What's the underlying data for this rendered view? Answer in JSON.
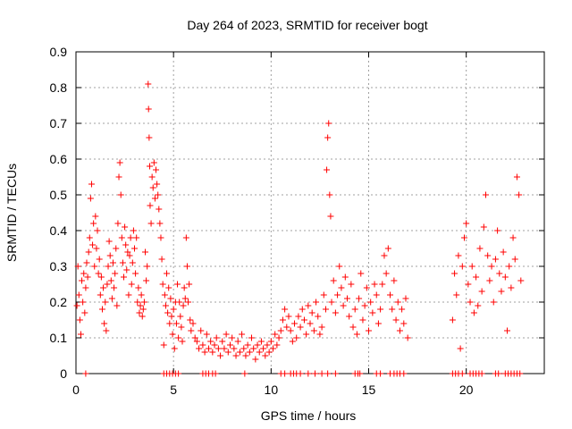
{
  "chart_data": {
    "type": "scatter",
    "title": "Day 264 of 2023, SRMTID for receiver bogt",
    "xlabel": "GPS time / hours",
    "ylabel": "SRMTID / TECUs",
    "xlim": [
      0,
      24
    ],
    "ylim": [
      0,
      0.9
    ],
    "x_ticks": [
      0,
      5,
      10,
      15,
      20
    ],
    "y_ticks": [
      0,
      0.1,
      0.2,
      0.3,
      0.4,
      0.5,
      0.6,
      0.7,
      0.8,
      0.9
    ],
    "x_tick_labels": [
      "0",
      "5",
      "10",
      "15",
      "20"
    ],
    "y_tick_labels": [
      "0",
      "0.1",
      "0.2",
      "0.3",
      "0.4",
      "0.5",
      "0.6",
      "0.7",
      "0.8",
      "0.9"
    ],
    "grid": true,
    "marker": "+",
    "marker_color": "#ff0000",
    "series": [
      {
        "name": "SRMTID",
        "points": [
          [
            0.05,
            0.19
          ],
          [
            0.1,
            0.3
          ],
          [
            0.15,
            0.22
          ],
          [
            0.2,
            0.15
          ],
          [
            0.25,
            0.11
          ],
          [
            0.3,
            0.26
          ],
          [
            0.35,
            0.2
          ],
          [
            0.4,
            0.28
          ],
          [
            0.45,
            0.17
          ],
          [
            0.5,
            0.24
          ],
          [
            0.55,
            0.31
          ],
          [
            0.6,
            0.27
          ],
          [
            0.65,
            0.34
          ],
          [
            0.7,
            0.38
          ],
          [
            0.75,
            0.49
          ],
          [
            0.8,
            0.53
          ],
          [
            0.85,
            0.36
          ],
          [
            0.9,
            0.42
          ],
          [
            0.95,
            0.3
          ],
          [
            1.0,
            0.44
          ],
          [
            1.05,
            0.35
          ],
          [
            1.1,
            0.4
          ],
          [
            1.15,
            0.28
          ],
          [
            1.2,
            0.32
          ],
          [
            1.25,
            0.22
          ],
          [
            1.3,
            0.27
          ],
          [
            1.35,
            0.18
          ],
          [
            1.4,
            0.24
          ],
          [
            1.45,
            0.14
          ],
          [
            1.5,
            0.2
          ],
          [
            1.55,
            0.12
          ],
          [
            1.6,
            0.25
          ],
          [
            1.65,
            0.3
          ],
          [
            1.7,
            0.37
          ],
          [
            1.75,
            0.33
          ],
          [
            1.8,
            0.26
          ],
          [
            1.85,
            0.21
          ],
          [
            1.9,
            0.31
          ],
          [
            1.95,
            0.24
          ],
          [
            2.0,
            0.28
          ],
          [
            2.05,
            0.35
          ],
          [
            2.1,
            0.19
          ],
          [
            2.15,
            0.42
          ],
          [
            2.2,
            0.55
          ],
          [
            2.25,
            0.59
          ],
          [
            2.3,
            0.5
          ],
          [
            2.35,
            0.38
          ],
          [
            2.4,
            0.31
          ],
          [
            2.45,
            0.27
          ],
          [
            2.5,
            0.41
          ],
          [
            2.55,
            0.36
          ],
          [
            2.6,
            0.29
          ],
          [
            2.65,
            0.34
          ],
          [
            2.7,
            0.22
          ],
          [
            2.75,
            0.33
          ],
          [
            2.8,
            0.38
          ],
          [
            2.85,
            0.25
          ],
          [
            2.9,
            0.31
          ],
          [
            2.95,
            0.4
          ],
          [
            3.0,
            0.35
          ],
          [
            3.05,
            0.28
          ],
          [
            3.1,
            0.38
          ],
          [
            3.15,
            0.2
          ],
          [
            3.2,
            0.24
          ],
          [
            3.25,
            0.17
          ],
          [
            3.3,
            0.19
          ],
          [
            3.35,
            0.22
          ],
          [
            3.4,
            0.16
          ],
          [
            3.45,
            0.18
          ],
          [
            3.5,
            0.2
          ],
          [
            3.55,
            0.34
          ],
          [
            3.6,
            0.26
          ],
          [
            3.65,
            0.3
          ],
          [
            3.7,
            0.81
          ],
          [
            3.72,
            0.74
          ],
          [
            3.75,
            0.66
          ],
          [
            3.78,
            0.58
          ],
          [
            3.8,
            0.47
          ],
          [
            3.85,
            0.42
          ],
          [
            3.9,
            0.55
          ],
          [
            3.95,
            0.52
          ],
          [
            4.0,
            0.59
          ],
          [
            4.05,
            0.49
          ],
          [
            4.1,
            0.57
          ],
          [
            4.15,
            0.53
          ],
          [
            4.2,
            0.5
          ],
          [
            4.25,
            0.46
          ],
          [
            4.3,
            0.42
          ],
          [
            4.35,
            0.38
          ],
          [
            4.4,
            0.32
          ],
          [
            4.45,
            0.25
          ],
          [
            4.5,
            0.08
          ],
          [
            4.55,
            0.22
          ],
          [
            4.6,
            0.19
          ],
          [
            4.65,
            0.28
          ],
          [
            4.7,
            0.17
          ],
          [
            4.75,
            0.24
          ],
          [
            4.8,
            0.14
          ],
          [
            4.85,
            0.21
          ],
          [
            4.9,
            0.16
          ],
          [
            4.95,
            0.11
          ],
          [
            5.0,
            0.18
          ],
          [
            5.05,
            0.07
          ],
          [
            5.1,
            0.2
          ],
          [
            5.15,
            0.14
          ],
          [
            5.2,
            0.25
          ],
          [
            5.25,
            0.1
          ],
          [
            5.3,
            0.2
          ],
          [
            5.35,
            0.16
          ],
          [
            5.4,
            0.13
          ],
          [
            5.45,
            0.09
          ],
          [
            5.5,
            0.19
          ],
          [
            5.55,
            0.24
          ],
          [
            5.6,
            0.21
          ],
          [
            5.65,
            0.38
          ],
          [
            5.7,
            0.3
          ],
          [
            5.75,
            0.2
          ],
          [
            5.8,
            0.25
          ],
          [
            5.85,
            0.15
          ],
          [
            5.9,
            0.12
          ],
          [
            6.0,
            0.14
          ],
          [
            6.1,
            0.1
          ],
          [
            6.2,
            0.09
          ],
          [
            6.3,
            0.07
          ],
          [
            6.4,
            0.12
          ],
          [
            6.5,
            0.08
          ],
          [
            6.6,
            0.06
          ],
          [
            6.7,
            0.11
          ],
          [
            6.8,
            0.07
          ],
          [
            6.9,
            0.09
          ],
          [
            7.0,
            0.06
          ],
          [
            7.1,
            0.08
          ],
          [
            7.2,
            0.1
          ],
          [
            7.3,
            0.07
          ],
          [
            7.4,
            0.05
          ],
          [
            7.5,
            0.09
          ],
          [
            7.6,
            0.07
          ],
          [
            7.7,
            0.11
          ],
          [
            7.8,
            0.06
          ],
          [
            7.9,
            0.08
          ],
          [
            8.0,
            0.1
          ],
          [
            8.1,
            0.07
          ],
          [
            8.2,
            0.05
          ],
          [
            8.3,
            0.09
          ],
          [
            8.4,
            0.06
          ],
          [
            8.5,
            0.11
          ],
          [
            8.6,
            0.07
          ],
          [
            8.7,
            0.05
          ],
          [
            8.8,
            0.08
          ],
          [
            8.9,
            0.06
          ],
          [
            9.0,
            0.1
          ],
          [
            9.1,
            0.07
          ],
          [
            9.2,
            0.04
          ],
          [
            9.3,
            0.08
          ],
          [
            9.4,
            0.06
          ],
          [
            9.5,
            0.09
          ],
          [
            9.6,
            0.07
          ],
          [
            9.7,
            0.05
          ],
          [
            9.8,
            0.08
          ],
          [
            9.9,
            0.06
          ],
          [
            10.0,
            0.09
          ],
          [
            10.1,
            0.07
          ],
          [
            10.2,
            0.11
          ],
          [
            10.3,
            0.08
          ],
          [
            10.4,
            0.1
          ],
          [
            10.5,
            0.12
          ],
          [
            10.6,
            0.15
          ],
          [
            10.7,
            0.18
          ],
          [
            10.8,
            0.13
          ],
          [
            10.9,
            0.16
          ],
          [
            11.0,
            0.12
          ],
          [
            11.1,
            0.09
          ],
          [
            11.2,
            0.14
          ],
          [
            11.3,
            0.1
          ],
          [
            11.4,
            0.16
          ],
          [
            11.5,
            0.13
          ],
          [
            11.6,
            0.18
          ],
          [
            11.7,
            0.15
          ],
          [
            11.8,
            0.11
          ],
          [
            11.9,
            0.19
          ],
          [
            12.0,
            0.14
          ],
          [
            12.1,
            0.17
          ],
          [
            12.2,
            0.12
          ],
          [
            12.3,
            0.2
          ],
          [
            12.4,
            0.16
          ],
          [
            12.5,
            0.11
          ],
          [
            12.6,
            0.13
          ],
          [
            12.7,
            0.22
          ],
          [
            12.8,
            0.18
          ],
          [
            12.85,
            0.57
          ],
          [
            12.9,
            0.66
          ],
          [
            12.95,
            0.7
          ],
          [
            13.0,
            0.5
          ],
          [
            13.05,
            0.44
          ],
          [
            13.1,
            0.2
          ],
          [
            13.2,
            0.26
          ],
          [
            13.3,
            0.17
          ],
          [
            13.4,
            0.22
          ],
          [
            13.5,
            0.3
          ],
          [
            13.6,
            0.24
          ],
          [
            13.7,
            0.19
          ],
          [
            13.8,
            0.27
          ],
          [
            13.9,
            0.21
          ],
          [
            14.0,
            0.16
          ],
          [
            14.1,
            0.25
          ],
          [
            14.2,
            0.13
          ],
          [
            14.3,
            0.18
          ],
          [
            14.4,
            0.11
          ],
          [
            14.5,
            0.21
          ],
          [
            14.6,
            0.28
          ],
          [
            14.7,
            0.15
          ],
          [
            14.8,
            0.19
          ],
          [
            14.9,
            0.24
          ],
          [
            15.0,
            0.12
          ],
          [
            15.1,
            0.2
          ],
          [
            15.2,
            0.17
          ],
          [
            15.3,
            0.25
          ],
          [
            15.4,
            0.22
          ],
          [
            15.5,
            0.14
          ],
          [
            15.6,
            0.18
          ],
          [
            15.7,
            0.25
          ],
          [
            15.8,
            0.33
          ],
          [
            15.9,
            0.28
          ],
          [
            16.0,
            0.35
          ],
          [
            16.1,
            0.22
          ],
          [
            16.2,
            0.18
          ],
          [
            16.3,
            0.26
          ],
          [
            16.4,
            0.15
          ],
          [
            16.5,
            0.2
          ],
          [
            16.6,
            0.12
          ],
          [
            16.7,
            0.18
          ],
          [
            16.8,
            0.14
          ],
          [
            16.9,
            0.21
          ],
          [
            17.0,
            0.1
          ],
          [
            19.3,
            0.15
          ],
          [
            19.4,
            0.28
          ],
          [
            19.5,
            0.22
          ],
          [
            19.6,
            0.33
          ],
          [
            19.7,
            0.07
          ],
          [
            19.8,
            0.3
          ],
          [
            19.9,
            0.38
          ],
          [
            20.0,
            0.42
          ],
          [
            20.1,
            0.25
          ],
          [
            20.2,
            0.2
          ],
          [
            20.3,
            0.3
          ],
          [
            20.4,
            0.17
          ],
          [
            20.5,
            0.27
          ],
          [
            20.6,
            0.19
          ],
          [
            20.7,
            0.35
          ],
          [
            20.8,
            0.23
          ],
          [
            20.9,
            0.41
          ],
          [
            21.0,
            0.5
          ],
          [
            21.1,
            0.33
          ],
          [
            21.2,
            0.26
          ],
          [
            21.3,
            0.3
          ],
          [
            21.4,
            0.2
          ],
          [
            21.5,
            0.32
          ],
          [
            21.6,
            0.4
          ],
          [
            21.7,
            0.28
          ],
          [
            21.8,
            0.23
          ],
          [
            21.9,
            0.34
          ],
          [
            22.0,
            0.27
          ],
          [
            22.1,
            0.12
          ],
          [
            22.2,
            0.3
          ],
          [
            22.3,
            0.24
          ],
          [
            22.4,
            0.38
          ],
          [
            22.5,
            0.32
          ],
          [
            22.6,
            0.55
          ],
          [
            22.7,
            0.5
          ],
          [
            22.8,
            0.26
          ]
        ]
      }
    ],
    "zero_points_x": [
      0.5,
      4.5,
      4.65,
      4.8,
      4.95,
      5.1,
      5.25,
      6.5,
      6.65,
      6.8,
      7.0,
      7.15,
      8.65,
      10.5,
      10.7,
      11.0,
      11.15,
      11.3,
      11.5,
      11.9,
      12.25,
      12.6,
      12.9,
      13.3,
      14.3,
      14.45,
      14.55,
      15.4,
      15.6,
      16.1,
      16.3,
      16.45,
      16.6,
      16.8,
      19.3,
      19.45,
      19.6,
      19.8,
      20.2,
      20.35,
      20.5,
      20.65,
      20.8,
      21.5,
      21.65,
      22.0,
      22.15,
      22.3,
      22.45,
      22.6,
      22.75
    ]
  }
}
